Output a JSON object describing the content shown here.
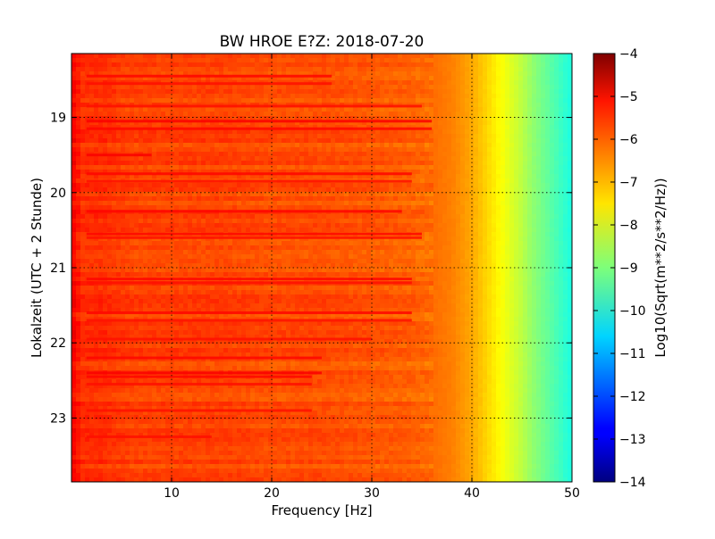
{
  "chart_data": {
    "type": "heatmap",
    "title": "BW HROE E?Z: 2018-07-20",
    "xlabel": "Frequency [Hz]",
    "ylabel": "Lokalzeit (UTC + 2 Stunde)",
    "xlim": [
      0,
      50
    ],
    "ylim": [
      18.15,
      23.85
    ],
    "y_inverted": true,
    "xticks": [
      10,
      20,
      30,
      40,
      50
    ],
    "yticks": [
      19,
      20,
      21,
      22,
      23
    ],
    "grid": true,
    "colormap": "jet",
    "colorbar": {
      "label": "Log10(Sqrt(m**2/s**2/Hz))",
      "range": [
        -14,
        -4
      ],
      "ticks": [
        -4,
        -5,
        -6,
        -7,
        -8,
        -9,
        -10,
        -11,
        -12,
        -13,
        -14
      ]
    },
    "frequency_profile": {
      "frequency_hz": [
        0,
        0.5,
        1,
        3,
        6,
        10,
        15,
        20,
        25,
        30,
        34,
        36,
        37,
        38,
        39,
        40,
        41,
        42,
        43,
        44,
        45,
        46,
        47,
        48,
        49,
        50
      ],
      "log10_amplitude": [
        -5.2,
        -5.4,
        -5.7,
        -5.7,
        -5.9,
        -5.9,
        -5.9,
        -6.0,
        -6.0,
        -6.1,
        -6.2,
        -6.3,
        -6.4,
        -6.5,
        -6.7,
        -6.9,
        -7.2,
        -7.5,
        -7.8,
        -8.1,
        -8.4,
        -8.8,
        -9.1,
        -9.4,
        -9.7,
        -10.0
      ]
    },
    "high_energy_bands": [
      {
        "time_hours": 18.45,
        "fmax_hz": 26.0,
        "log10_amplitude": -5.3
      },
      {
        "time_hours": 18.55,
        "fmax_hz": 26.0,
        "log10_amplitude": -5.4
      },
      {
        "time_hours": 18.85,
        "fmax_hz": 35.0,
        "log10_amplitude": -5.4
      },
      {
        "time_hours": 19.05,
        "fmax_hz": 36.0,
        "log10_amplitude": -5.2
      },
      {
        "time_hours": 19.15,
        "fmax_hz": 36.0,
        "log10_amplitude": -5.3
      },
      {
        "time_hours": 19.5,
        "fmax_hz": 8.0,
        "log10_amplitude": -5.2
      },
      {
        "time_hours": 19.75,
        "fmax_hz": 34.0,
        "log10_amplitude": -5.3
      },
      {
        "time_hours": 19.85,
        "fmax_hz": 34.0,
        "log10_amplitude": -5.4
      },
      {
        "time_hours": 20.25,
        "fmax_hz": 33.0,
        "log10_amplitude": -5.3
      },
      {
        "time_hours": 20.55,
        "fmax_hz": 35.0,
        "log10_amplitude": -5.3
      },
      {
        "time_hours": 20.6,
        "fmax_hz": 35.0,
        "log10_amplitude": -5.4
      },
      {
        "time_hours": 21.15,
        "fmax_hz": 34.0,
        "log10_amplitude": -5.3
      },
      {
        "time_hours": 21.2,
        "fmax_hz": 34.0,
        "log10_amplitude": -5.4
      },
      {
        "time_hours": 21.6,
        "fmax_hz": 34.0,
        "log10_amplitude": -5.3
      },
      {
        "time_hours": 21.7,
        "fmax_hz": 34.0,
        "log10_amplitude": -5.4
      },
      {
        "time_hours": 21.95,
        "fmax_hz": 30.0,
        "log10_amplitude": -5.4
      },
      {
        "time_hours": 22.2,
        "fmax_hz": 25.0,
        "log10_amplitude": -5.3
      },
      {
        "time_hours": 22.4,
        "fmax_hz": 25.0,
        "log10_amplitude": -5.2
      },
      {
        "time_hours": 22.45,
        "fmax_hz": 24.0,
        "log10_amplitude": -5.3
      },
      {
        "time_hours": 22.55,
        "fmax_hz": 24.0,
        "log10_amplitude": -5.4
      },
      {
        "time_hours": 22.9,
        "fmax_hz": 24.0,
        "log10_amplitude": -5.4
      },
      {
        "time_hours": 23.25,
        "fmax_hz": 14.0,
        "log10_amplitude": -5.4
      }
    ]
  }
}
